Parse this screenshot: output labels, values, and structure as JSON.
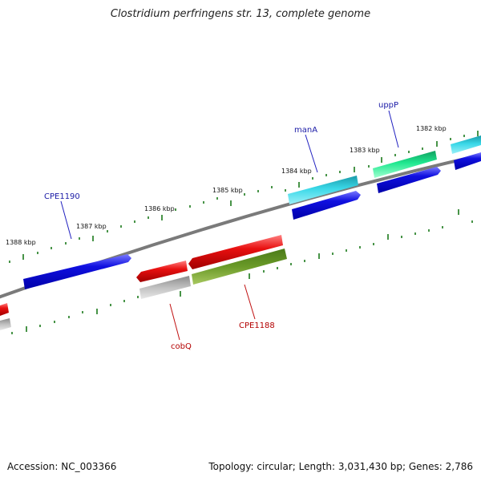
{
  "title": "Clostridium perfringens str. 13, complete genome",
  "accession": "Accession: NC_003366",
  "summary": "Topology: circular; Length: 3,031,430 bp; Genes: 2,786",
  "colors": {
    "backbone": "#808080",
    "tick": "#1a7a1a",
    "blue": "#1010e0",
    "cyan": "#22c8d8",
    "green": "#20e890",
    "red": "#e81010",
    "gray": "#b8b8b8",
    "olive": "#6a9a28"
  },
  "kbp_labels": [
    "1382 kbp",
    "1383 kbp",
    "1384 kbp",
    "1385 kbp",
    "1386 kbp",
    "1387 kbp",
    "1388 kbp"
  ],
  "genes": [
    {
      "name": "uppP",
      "color": "green",
      "strand": "forward"
    },
    {
      "name": "manA",
      "color": "cyan",
      "strand": "forward"
    },
    {
      "name": "CPE1190",
      "color": "blue",
      "strand": "forward"
    },
    {
      "name": "cobQ",
      "color": "red",
      "strand": "reverse"
    },
    {
      "name": "CPE1188",
      "color": "olive",
      "strand": "reverse"
    }
  ]
}
